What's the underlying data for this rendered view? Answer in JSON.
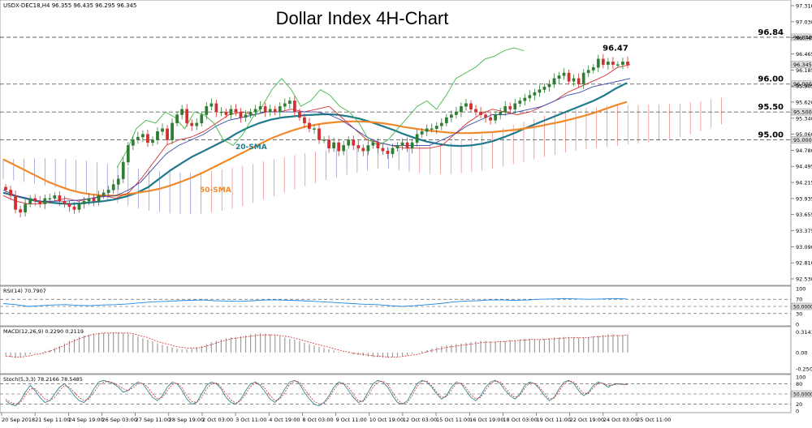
{
  "header": {
    "symbol_line": "USDX-DEC18,H4  96.355 96.435 96.295 96.345",
    "title": "Dollar Index 4H-Chart"
  },
  "chart_data": [
    {
      "type": "candlestick",
      "name": "price",
      "title": "Dollar Index 4H-Chart",
      "ylim": [
        92.39,
        97.45
      ],
      "y_ticks": [
        "97.310",
        "97.030",
        "96.745",
        "96.465",
        "96.185",
        "95.905",
        "95.620",
        "95.340",
        "95.060",
        "94.780",
        "94.495",
        "94.215",
        "93.935",
        "93.655",
        "93.375",
        "93.090",
        "92.810",
        "92.530"
      ],
      "x_ticks": [
        "20 Sep 2018",
        "21 Sep 11:00",
        "24 Sep 19:00",
        "26 Sep 03:00",
        "27 Sep 11:00",
        "28 Sep 19:00",
        "2 Oct 03:00",
        "3 Oct 11:00",
        "4 Oct 19:00",
        "8 Oct 03:00",
        "9 Oct 11:00",
        "10 Oct 19:00",
        "12 Oct 03:00",
        "15 Oct 11:00",
        "16 Oct 19:00",
        "18 Oct 03:00",
        "19 Oct 11:00",
        "22 Oct 19:00",
        "24 Oct 03:00",
        "25 Oct 11:00"
      ],
      "bars": 128,
      "closes": [
        94.1,
        94.0,
        93.75,
        93.7,
        93.85,
        93.95,
        93.9,
        93.85,
        93.95,
        93.95,
        94.0,
        93.9,
        93.85,
        93.8,
        93.75,
        93.85,
        93.9,
        93.95,
        93.9,
        94.0,
        94.05,
        94.1,
        94.2,
        94.3,
        94.6,
        94.9,
        95.0,
        95.05,
        95.1,
        94.95,
        95.0,
        95.15,
        95.2,
        95.0,
        95.3,
        95.45,
        95.55,
        95.3,
        95.25,
        95.3,
        95.45,
        95.6,
        95.65,
        95.5,
        95.5,
        95.45,
        95.55,
        95.5,
        95.4,
        95.45,
        95.5,
        95.55,
        95.6,
        95.5,
        95.55,
        95.5,
        95.6,
        95.65,
        95.7,
        95.5,
        95.4,
        95.3,
        95.2,
        95.2,
        95.0,
        95.0,
        94.85,
        94.95,
        94.8,
        94.9,
        95.0,
        94.9,
        94.85,
        94.8,
        94.9,
        94.95,
        94.85,
        94.8,
        94.75,
        94.85,
        94.9,
        94.95,
        94.85,
        94.95,
        95.1,
        95.15,
        95.2,
        95.2,
        95.25,
        95.3,
        95.4,
        95.45,
        95.5,
        95.6,
        95.65,
        95.55,
        95.5,
        95.45,
        95.4,
        95.35,
        95.45,
        95.5,
        95.6,
        95.55,
        95.65,
        95.7,
        95.75,
        95.8,
        95.85,
        95.9,
        95.95,
        96.0,
        96.1,
        96.15,
        96.2,
        96.05,
        96.1,
        96.0,
        96.2,
        96.25,
        96.3,
        96.45,
        96.35,
        96.4,
        96.35,
        96.35,
        96.4,
        96.35
      ],
      "candle_colors": {
        "up": "#2e7d32",
        "down": "#d32f2f"
      },
      "series": [
        {
          "name": "20-SMA",
          "color": "#1f7a8c",
          "y": [
            94.05,
            94.0,
            93.95,
            93.9,
            93.88,
            93.86,
            93.85,
            93.86,
            93.88,
            93.9,
            93.93,
            93.98,
            94.05,
            94.15,
            94.3,
            94.45,
            94.58,
            94.7,
            94.8,
            94.9,
            95.0,
            95.12,
            95.22,
            95.3,
            95.36,
            95.4,
            95.42,
            95.44,
            95.45,
            95.46,
            95.45,
            95.42,
            95.38,
            95.32,
            95.25,
            95.18,
            95.1,
            95.03,
            94.97,
            94.93,
            94.9,
            94.89,
            94.9,
            94.93,
            94.98,
            95.05,
            95.13,
            95.22,
            95.3,
            95.38,
            95.46,
            95.54,
            95.62,
            95.7,
            95.8,
            95.92,
            96.02
          ]
        },
        {
          "name": "50-SMA",
          "color": "#f0892b",
          "y": [
            94.65,
            94.55,
            94.45,
            94.35,
            94.25,
            94.17,
            94.1,
            94.05,
            94.02,
            94.0,
            94.0,
            94.02,
            94.05,
            94.08,
            94.12,
            94.18,
            94.25,
            94.33,
            94.42,
            94.52,
            94.62,
            94.72,
            94.82,
            94.92,
            95.02,
            95.1,
            95.17,
            95.23,
            95.27,
            95.3,
            95.32,
            95.33,
            95.33,
            95.32,
            95.3,
            95.27,
            95.23,
            95.2,
            95.17,
            95.15,
            95.13,
            95.12,
            95.12,
            95.13,
            95.14,
            95.16,
            95.18,
            95.21,
            95.24,
            95.28,
            95.32,
            95.37,
            95.42,
            95.48,
            95.55,
            95.62,
            95.68
          ]
        },
        {
          "name": "Tenkan",
          "color": "#d32f2f",
          "y": [
            94.0,
            93.9,
            93.85,
            93.85,
            93.9,
            93.95,
            93.9,
            93.95,
            94.0,
            93.95,
            94.05,
            94.3,
            94.6,
            94.9,
            95.0,
            95.05,
            95.15,
            95.3,
            95.45,
            95.5,
            95.45,
            95.5,
            95.5,
            95.55,
            95.5,
            95.55,
            95.6,
            95.4,
            95.2,
            95.0,
            94.95,
            94.9,
            94.85,
            94.85,
            94.85,
            94.9,
            95.1,
            95.3,
            95.45,
            95.55,
            95.5,
            95.45,
            95.5,
            95.6,
            95.7,
            95.85,
            95.95,
            96.05,
            96.15,
            96.3,
            96.35
          ]
        },
        {
          "name": "Kijun",
          "color": "#3949ab",
          "y": [
            94.1,
            94.0,
            93.95,
            93.9,
            93.9,
            93.9,
            93.92,
            93.95,
            93.98,
            94.0,
            94.1,
            94.25,
            94.5,
            94.75,
            94.9,
            95.0,
            95.1,
            95.25,
            95.35,
            95.4,
            95.45,
            95.5,
            95.5,
            95.5,
            95.5,
            95.5,
            95.45,
            95.35,
            95.2,
            95.05,
            94.95,
            94.9,
            94.9,
            94.9,
            94.9,
            95.0,
            95.1,
            95.25,
            95.35,
            95.45,
            95.45,
            95.5,
            95.55,
            95.6,
            95.7,
            95.8,
            95.85,
            95.95,
            96.0,
            96.05,
            96.1
          ]
        },
        {
          "name": "Chikou",
          "color": "#43b649",
          "y": [
            94.5,
            94.8,
            95.2,
            95.35,
            95.3,
            95.5,
            95.4,
            95.2,
            95.5,
            95.45,
            95.3,
            95.0,
            94.9,
            95.1,
            95.4,
            95.6,
            95.9,
            96.1,
            95.9,
            95.6,
            95.7,
            95.9,
            95.8,
            95.6,
            95.5,
            95.3,
            95.0,
            94.9,
            95.0,
            95.2,
            95.4,
            95.6,
            95.7,
            95.55,
            95.8,
            96.1,
            96.2,
            96.3,
            96.45,
            96.5,
            96.6,
            96.65,
            96.6
          ]
        }
      ],
      "cloud_colors": {
        "bull": "#3949ab",
        "bear": "#d32f2f"
      },
      "levels": [
        {
          "label": "96.84",
          "value": 96.84,
          "axis_label": "96.840"
        },
        {
          "label": "96.00",
          "value": 96.0,
          "axis_label": "96.000"
        },
        {
          "label": "95.50",
          "value": 95.5,
          "axis_label": "95.500"
        },
        {
          "label": "95.00",
          "value": 95.0,
          "axis_label": "95.000"
        }
      ],
      "last_price_label": "96.345",
      "annotations": [
        {
          "text": "96.47",
          "value": 96.47
        },
        {
          "text": "20-SMA",
          "color": "#1f7a8c"
        },
        {
          "text": "50-SMA",
          "color": "#f0892b"
        }
      ]
    },
    {
      "type": "line",
      "name": "rsi",
      "label": "RSI(14) 70.7907",
      "ylim": [
        0,
        100
      ],
      "y_ticks": [
        "100",
        "70",
        "30",
        "0"
      ],
      "current_label": "50.0000",
      "color": "#1e88e5",
      "levels": [
        70,
        50,
        30
      ],
      "values": [
        58,
        55,
        50,
        52,
        54,
        55,
        53,
        52,
        54,
        55,
        57,
        60,
        63,
        64,
        66,
        67,
        68,
        66,
        65,
        64,
        66,
        68,
        68,
        67,
        66,
        64,
        62,
        60,
        58,
        56,
        55,
        52,
        50,
        52,
        55,
        58,
        62,
        65,
        66,
        68,
        68,
        67,
        68,
        70,
        71,
        72,
        71,
        70,
        71,
        72,
        71
      ]
    },
    {
      "type": "bar+line",
      "name": "macd",
      "label": "MACD(12,26,9) 0.2290 0.2119",
      "ylim": [
        -0.3,
        0.36
      ],
      "y_ticks": [
        "0.3141",
        "0.00",
        "-0.2509"
      ],
      "histogram": [
        -0.05,
        -0.07,
        -0.08,
        -0.07,
        -0.05,
        -0.03,
        -0.01,
        0.0,
        0.02,
        0.04,
        0.07,
        0.1,
        0.14,
        0.18,
        0.21,
        0.24,
        0.26,
        0.28,
        0.29,
        0.3,
        0.3,
        0.3,
        0.31,
        0.31,
        0.3,
        0.29,
        0.28,
        0.25,
        0.22,
        0.2,
        0.17,
        0.14,
        0.12,
        0.1,
        0.08,
        0.06,
        0.05,
        0.05,
        0.06,
        0.08,
        0.1,
        0.13,
        0.16,
        0.18,
        0.2,
        0.22,
        0.23,
        0.24,
        0.25,
        0.26,
        0.28,
        0.29,
        0.3,
        0.29,
        0.28,
        0.26,
        0.25,
        0.23,
        0.21,
        0.2,
        0.18,
        0.15,
        0.13,
        0.11,
        0.09,
        0.07,
        0.05,
        0.03,
        0.01,
        0.0,
        -0.01,
        -0.03,
        -0.04,
        -0.05,
        -0.06,
        -0.07,
        -0.07,
        -0.08,
        -0.08,
        -0.07,
        -0.06,
        -0.05,
        -0.04,
        -0.02,
        0.0,
        0.02,
        0.04,
        0.06,
        0.08,
        0.1,
        0.11,
        0.12,
        0.13,
        0.14,
        0.15,
        0.16,
        0.17,
        0.18,
        0.18,
        0.17,
        0.17,
        0.17,
        0.18,
        0.19,
        0.19,
        0.2,
        0.21,
        0.21,
        0.2,
        0.2,
        0.21,
        0.22,
        0.23,
        0.23,
        0.24,
        0.24,
        0.24,
        0.23,
        0.23,
        0.24,
        0.25,
        0.26,
        0.27,
        0.28,
        0.28,
        0.27,
        0.27,
        0.28
      ],
      "signal": [
        -0.06,
        -0.06,
        -0.07,
        -0.07,
        -0.06,
        -0.05,
        -0.03,
        -0.02,
        0.0,
        0.02,
        0.05,
        0.08,
        0.11,
        0.15,
        0.18,
        0.21,
        0.24,
        0.26,
        0.28,
        0.29,
        0.3,
        0.3,
        0.3,
        0.3,
        0.3,
        0.3,
        0.29,
        0.27,
        0.25,
        0.23,
        0.2,
        0.17,
        0.15,
        0.13,
        0.11,
        0.09,
        0.08,
        0.07,
        0.07,
        0.07,
        0.08,
        0.1,
        0.12,
        0.15,
        0.17,
        0.19,
        0.21,
        0.22,
        0.23,
        0.24,
        0.25,
        0.26,
        0.27,
        0.27,
        0.27,
        0.27,
        0.26,
        0.25,
        0.24,
        0.22,
        0.2,
        0.18,
        0.16,
        0.14,
        0.12,
        0.1,
        0.08,
        0.06,
        0.04,
        0.02,
        0.01,
        -0.01,
        -0.02,
        -0.03,
        -0.04,
        -0.05,
        -0.06,
        -0.06,
        -0.07,
        -0.07,
        -0.07,
        -0.06,
        -0.05,
        -0.04,
        -0.03,
        -0.01,
        0.01,
        0.03,
        0.05,
        0.06,
        0.08,
        0.09,
        0.1,
        0.11,
        0.12,
        0.13,
        0.14,
        0.15,
        0.16,
        0.16,
        0.16,
        0.17,
        0.17,
        0.18,
        0.18,
        0.19,
        0.19,
        0.2,
        0.2,
        0.2,
        0.2,
        0.21,
        0.21,
        0.22,
        0.22,
        0.23,
        0.23,
        0.23,
        0.23,
        0.23,
        0.24,
        0.24,
        0.25,
        0.25,
        0.26,
        0.26,
        0.26,
        0.27
      ],
      "histogram_color": "#9e9e9e",
      "signal_color": "#d32f2f"
    },
    {
      "type": "line",
      "name": "stochastic",
      "label": "Stoch(5,3,3) 78.2166 78.5485",
      "ylim": [
        0,
        100
      ],
      "y_ticks": [
        "100",
        "80",
        "20",
        "0"
      ],
      "current_label": "50.0000",
      "levels": [
        80,
        50,
        20
      ],
      "series": [
        {
          "name": "%K",
          "color": "#1f7a8c",
          "values": [
            30,
            20,
            15,
            30,
            55,
            75,
            60,
            40,
            25,
            30,
            50,
            70,
            80,
            65,
            45,
            30,
            25,
            40,
            65,
            85,
            90,
            85,
            80,
            70,
            55,
            60,
            75,
            85,
            80,
            60,
            40,
            30,
            45,
            70,
            85,
            80,
            60,
            35,
            20,
            25,
            50,
            75,
            85,
            80,
            65,
            40,
            25,
            20,
            35,
            60,
            80,
            85,
            75,
            55,
            35,
            25,
            40,
            65,
            85,
            90,
            80,
            55,
            35,
            20,
            15,
            25,
            45,
            70,
            85,
            80,
            60,
            40,
            25,
            30,
            55,
            80,
            90,
            85,
            70,
            45,
            25,
            20,
            30,
            55,
            80,
            90,
            85,
            70,
            50,
            35,
            45,
            70,
            85,
            80,
            60,
            40,
            30,
            45,
            70,
            85,
            90,
            80,
            60,
            45,
            35,
            50,
            75,
            85,
            80,
            65,
            45,
            30,
            40,
            65,
            85,
            90,
            80,
            60,
            45,
            55,
            75,
            85,
            80,
            70,
            78,
            80,
            78,
            78
          ]
        },
        {
          "name": "%D",
          "color": "#d32f2f",
          "values": [
            35,
            25,
            20,
            25,
            45,
            65,
            65,
            50,
            35,
            30,
            40,
            60,
            75,
            70,
            55,
            40,
            30,
            35,
            55,
            75,
            85,
            87,
            83,
            75,
            65,
            60,
            68,
            80,
            82,
            70,
            50,
            35,
            40,
            60,
            78,
            82,
            68,
            45,
            28,
            25,
            40,
            65,
            80,
            82,
            70,
            50,
            32,
            23,
            30,
            50,
            72,
            82,
            80,
            65,
            45,
            30,
            35,
            55,
            78,
            88,
            85,
            65,
            45,
            28,
            20,
            22,
            38,
            62,
            80,
            82,
            70,
            48,
            30,
            28,
            45,
            70,
            85,
            88,
            78,
            55,
            33,
            22,
            25,
            45,
            72,
            87,
            88,
            75,
            55,
            40,
            42,
            62,
            80,
            82,
            68,
            48,
            35,
            40,
            62,
            80,
            88,
            85,
            68,
            50,
            40,
            45,
            68,
            82,
            82,
            70,
            52,
            35,
            38,
            58,
            80,
            88,
            85,
            68,
            52,
            52,
            68,
            82,
            82,
            75,
            76,
            79,
            78,
            78
          ]
        }
      ]
    }
  ]
}
